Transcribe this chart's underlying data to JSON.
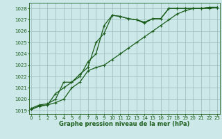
{
  "bg_color": "#cce8e8",
  "grid_color": "#99bbbb",
  "line_color": "#1a5c1a",
  "title": "Graphe pression niveau de la mer (hPa)",
  "ylabel_values": [
    1019,
    1020,
    1021,
    1022,
    1023,
    1024,
    1025,
    1026,
    1027,
    1028
  ],
  "xlim": [
    -0.3,
    23.3
  ],
  "ylim": [
    1018.7,
    1028.5
  ],
  "series1_x": [
    0,
    1,
    2,
    3,
    4,
    5,
    6,
    7,
    8,
    9,
    10,
    11,
    12,
    13,
    14,
    15,
    16,
    17,
    18,
    19,
    20,
    21,
    22,
    23
  ],
  "series1_y": [
    1019.2,
    1019.5,
    1019.6,
    1020.0,
    1021.5,
    1021.5,
    1022.2,
    1022.8,
    1025.0,
    1025.8,
    1027.4,
    1027.3,
    1027.1,
    1027.0,
    1026.8,
    1027.1,
    1027.1,
    1028.0,
    1028.0,
    1028.0,
    1028.0,
    1028.0,
    1028.1,
    1028.1
  ],
  "series2_x": [
    0,
    1,
    2,
    3,
    4,
    5,
    6,
    7,
    8,
    9,
    10,
    11,
    12,
    13,
    14,
    15,
    16,
    17,
    18,
    19,
    20,
    21,
    22,
    23
  ],
  "series2_y": [
    1019.1,
    1019.4,
    1019.5,
    1020.5,
    1021.0,
    1021.5,
    1022.0,
    1023.3,
    1024.0,
    1026.5,
    1027.4,
    1027.3,
    1027.1,
    1027.0,
    1026.7,
    1027.1,
    1027.1,
    1028.0,
    1028.0,
    1028.0,
    1028.0,
    1028.0,
    1028.1,
    1028.1
  ],
  "series3_x": [
    0,
    1,
    2,
    3,
    4,
    5,
    6,
    7,
    8,
    9,
    10,
    11,
    12,
    13,
    14,
    15,
    16,
    17,
    18,
    19,
    20,
    21,
    22,
    23
  ],
  "series3_y": [
    1019.1,
    1019.4,
    1019.5,
    1019.7,
    1020.0,
    1021.0,
    1021.5,
    1022.5,
    1022.8,
    1023.0,
    1023.5,
    1024.0,
    1024.5,
    1025.0,
    1025.5,
    1026.0,
    1026.5,
    1027.0,
    1027.5,
    1027.8,
    1028.0,
    1028.0,
    1028.0,
    1028.1
  ],
  "tick_fontsize": 5,
  "xlabel_fontsize": 6,
  "lw": 0.9,
  "ms": 2.5
}
